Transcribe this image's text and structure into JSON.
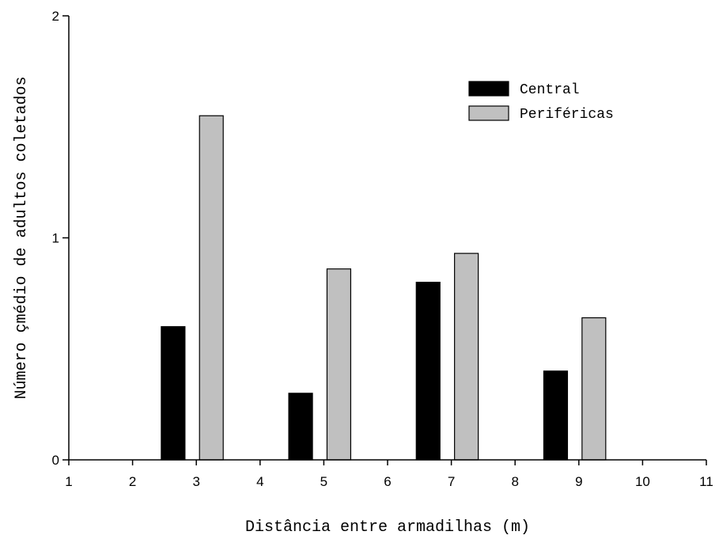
{
  "chart_data": {
    "type": "bar",
    "title": "",
    "xlabel": "Distância entre armadilhas (m)",
    "ylabel": "Número çmédio de adultos coletados",
    "xlim": [
      1,
      11
    ],
    "ylim": [
      0,
      2
    ],
    "x_ticks": [
      "1",
      "2",
      "3",
      "4",
      "5",
      "6",
      "7",
      "8",
      "9",
      "10",
      "11"
    ],
    "y_ticks": [
      "0",
      "1",
      "2"
    ],
    "categories": [
      "3",
      "5",
      "7",
      "9"
    ],
    "series": [
      {
        "name": "Central",
        "values": [
          0.6,
          0.3,
          0.8,
          0.4
        ],
        "color": "#000000"
      },
      {
        "name": "Periféricas",
        "values": [
          1.55,
          0.86,
          0.93,
          0.64
        ],
        "color": "#c0c0c0"
      }
    ],
    "legend_position": "top-right",
    "grid": false
  }
}
